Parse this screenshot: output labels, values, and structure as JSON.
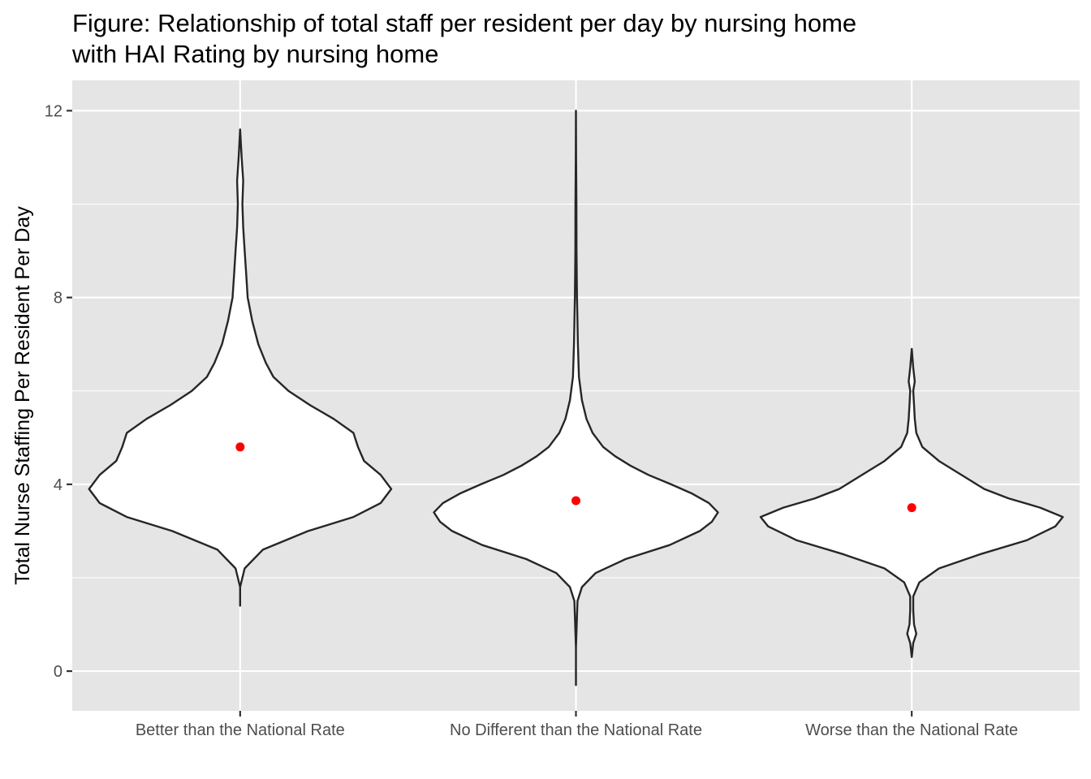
{
  "chart_data": {
    "type": "violin",
    "title": "Figure: Relationship of total staff per resident per day by nursing home",
    "subtitle": "with HAI Rating by nursing home",
    "xlabel": "",
    "ylabel": "Total Nurse Staffing Per Resident Per Day",
    "ylim": [
      -0.85,
      12.65
    ],
    "y_ticks": [
      0,
      4,
      8,
      12
    ],
    "grid": true,
    "colors": {
      "panel": "#e5e5e5",
      "grid": "#ffffff",
      "violin_fill": "#ffffff",
      "violin_stroke": "#262626",
      "mean_point": "#ff0000"
    },
    "categories": [
      "Better than the National Rate",
      "No Different than the National Rate",
      "Worse than the National Rate"
    ],
    "series": [
      {
        "category": "Better than the National Rate",
        "min": 1.4,
        "max": 11.6,
        "mean": 4.8,
        "density": [
          [
            1.4,
            0.0
          ],
          [
            1.8,
            0.0
          ],
          [
            2.2,
            0.03
          ],
          [
            2.6,
            0.15
          ],
          [
            3.0,
            0.45
          ],
          [
            3.3,
            0.75
          ],
          [
            3.6,
            0.93
          ],
          [
            3.9,
            1.0
          ],
          [
            4.2,
            0.93
          ],
          [
            4.5,
            0.82
          ],
          [
            4.8,
            0.78
          ],
          [
            5.1,
            0.75
          ],
          [
            5.4,
            0.62
          ],
          [
            5.7,
            0.46
          ],
          [
            6.0,
            0.32
          ],
          [
            6.3,
            0.22
          ],
          [
            6.6,
            0.17
          ],
          [
            7.0,
            0.12
          ],
          [
            7.5,
            0.08
          ],
          [
            8.0,
            0.05
          ],
          [
            8.5,
            0.04
          ],
          [
            9.0,
            0.03
          ],
          [
            9.5,
            0.02
          ],
          [
            10.0,
            0.015
          ],
          [
            10.5,
            0.02
          ],
          [
            11.0,
            0.01
          ],
          [
            11.6,
            0.0
          ]
        ]
      },
      {
        "category": "No Different than the National Rate",
        "min": -0.3,
        "max": 12.0,
        "mean": 3.65,
        "density": [
          [
            -0.3,
            0.0
          ],
          [
            0.5,
            0.0
          ],
          [
            1.5,
            0.01
          ],
          [
            1.8,
            0.04
          ],
          [
            2.1,
            0.13
          ],
          [
            2.4,
            0.33
          ],
          [
            2.7,
            0.62
          ],
          [
            3.0,
            0.82
          ],
          [
            3.2,
            0.9
          ],
          [
            3.4,
            0.94
          ],
          [
            3.6,
            0.88
          ],
          [
            3.8,
            0.77
          ],
          [
            4.0,
            0.63
          ],
          [
            4.2,
            0.48
          ],
          [
            4.4,
            0.36
          ],
          [
            4.6,
            0.26
          ],
          [
            4.8,
            0.18
          ],
          [
            5.1,
            0.11
          ],
          [
            5.4,
            0.07
          ],
          [
            5.8,
            0.04
          ],
          [
            6.3,
            0.02
          ],
          [
            7.0,
            0.013
          ],
          [
            8.0,
            0.007
          ],
          [
            9.0,
            0.004
          ],
          [
            10.0,
            0.003
          ],
          [
            11.0,
            0.001
          ],
          [
            12.0,
            0.0
          ]
        ]
      },
      {
        "category": "Worse than the National Rate",
        "min": 0.3,
        "max": 6.9,
        "mean": 3.5,
        "density": [
          [
            0.3,
            0.0
          ],
          [
            0.6,
            0.01
          ],
          [
            0.8,
            0.03
          ],
          [
            1.0,
            0.015
          ],
          [
            1.3,
            0.01
          ],
          [
            1.6,
            0.01
          ],
          [
            1.9,
            0.05
          ],
          [
            2.2,
            0.18
          ],
          [
            2.5,
            0.45
          ],
          [
            2.8,
            0.76
          ],
          [
            3.1,
            0.95
          ],
          [
            3.3,
            1.0
          ],
          [
            3.5,
            0.85
          ],
          [
            3.7,
            0.64
          ],
          [
            3.9,
            0.48
          ],
          [
            4.1,
            0.38
          ],
          [
            4.3,
            0.28
          ],
          [
            4.5,
            0.18
          ],
          [
            4.8,
            0.07
          ],
          [
            5.1,
            0.03
          ],
          [
            5.4,
            0.02
          ],
          [
            5.7,
            0.015
          ],
          [
            6.0,
            0.01
          ],
          [
            6.2,
            0.02
          ],
          [
            6.5,
            0.01
          ],
          [
            6.9,
            0.0
          ]
        ]
      }
    ]
  }
}
